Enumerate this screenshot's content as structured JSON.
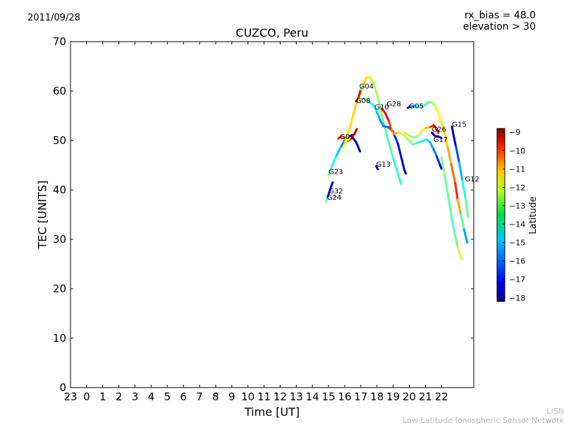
{
  "header": {
    "date": "2011/09/28",
    "rx_bias": "rx_bias = 48.0",
    "elevation": "elevation > 30"
  },
  "footer": {
    "org_code": "LISN",
    "org_name": "Low-Latitude Ionospheric Sensor Network"
  },
  "chart_data": {
    "type": "scatter",
    "title": "CUZCO, Peru",
    "xlabel": "Time [UT]",
    "ylabel": "TEC [UNITS]",
    "xlim": [
      -1,
      24
    ],
    "ylim": [
      0,
      70
    ],
    "x_ticks": [
      -1,
      0,
      1,
      2,
      3,
      4,
      5,
      6,
      7,
      8,
      9,
      10,
      11,
      12,
      13,
      14,
      15,
      16,
      17,
      18,
      19,
      20,
      21,
      22
    ],
    "x_tick_labels": [
      "23",
      "0",
      "1",
      "2",
      "3",
      "4",
      "5",
      "6",
      "7",
      "8",
      "9",
      "10",
      "11",
      "12",
      "13",
      "14",
      "15",
      "16",
      "17",
      "18",
      "19",
      "20",
      "21",
      "22"
    ],
    "y_ticks": [
      0,
      10,
      20,
      30,
      40,
      50,
      60,
      70
    ],
    "y_tick_labels": [
      "0",
      "10",
      "20",
      "30",
      "40",
      "50",
      "60",
      "70"
    ],
    "grid": false,
    "colorbar": {
      "label": "Latitude",
      "min": -18.2,
      "max": -8.8,
      "ticks": [
        -9,
        -10,
        -11,
        -12,
        -13,
        -14,
        -15,
        -16,
        -17,
        -18
      ],
      "tick_labels": [
        "−9",
        "−10",
        "−11",
        "−12",
        "−13",
        "−14",
        "−15",
        "−16",
        "−17",
        "−18"
      ],
      "colormap": "jet"
    },
    "series": [
      {
        "name": "G24",
        "label_at": [
          14.9,
          38.0
        ],
        "points": [
          [
            14.85,
            37.6,
            -13.4
          ],
          [
            14.9,
            38.3,
            -13.9
          ],
          [
            14.95,
            38.8,
            -14.4
          ]
        ]
      },
      {
        "name": "G32",
        "label_at": [
          15.0,
          39.3
        ],
        "points": [
          [
            14.95,
            38.6,
            -16.5
          ],
          [
            15.05,
            39.6,
            -17.0
          ],
          [
            15.15,
            40.6,
            -17.4
          ],
          [
            15.25,
            41.5,
            -17.7
          ]
        ]
      },
      {
        "name": "G23",
        "label_at": [
          15.0,
          43.2
        ],
        "points": [
          [
            15.0,
            43.0,
            -13.4
          ],
          [
            15.2,
            44.8,
            -14.2
          ],
          [
            15.5,
            47.0,
            -14.9
          ],
          [
            15.8,
            48.9,
            -15.5
          ],
          [
            16.1,
            50.6,
            -16.0
          ],
          [
            16.4,
            51.0,
            -16.8
          ],
          [
            16.7,
            49.7,
            -17.4
          ],
          [
            16.95,
            47.8,
            -17.9
          ]
        ]
      },
      {
        "name": "G07",
        "label_at": [
          15.7,
          50.3
        ],
        "points": [
          [
            15.6,
            50.4,
            -9.7
          ],
          [
            15.8,
            50.9,
            -10.3
          ],
          [
            16.0,
            50.4,
            -11.3
          ],
          [
            16.2,
            49.8,
            -11.6
          ],
          [
            16.4,
            50.3,
            -10.8
          ],
          [
            16.6,
            51.3,
            -9.6
          ],
          [
            16.75,
            52.3,
            -9.2
          ]
        ]
      },
      {
        "name": "G08",
        "label_at": [
          16.7,
          57.6
        ],
        "points": [
          [
            15.9,
            48.5,
            -12.5
          ],
          [
            16.2,
            51.0,
            -12.2
          ],
          [
            16.5,
            54.8,
            -12.0
          ],
          [
            16.8,
            58.4,
            -11.9
          ],
          [
            17.1,
            60.7,
            -12.0
          ],
          [
            17.35,
            62.8,
            -12.0
          ],
          [
            17.55,
            62.8,
            -12.3
          ],
          [
            17.8,
            61.7,
            -12.8
          ],
          [
            18.1,
            58.0,
            -13.4
          ],
          [
            18.5,
            52.4,
            -13.8
          ],
          [
            19.0,
            46.4,
            -14.1
          ],
          [
            19.5,
            41.2,
            -14.5
          ]
        ]
      },
      {
        "name": "G04",
        "label_at": [
          16.9,
          60.5
        ],
        "points": [
          [
            16.7,
            57.9,
            -9.2
          ],
          [
            16.85,
            58.6,
            -9.6
          ],
          [
            17.0,
            60.3,
            -10.2
          ],
          [
            17.1,
            60.7,
            -17.6
          ]
        ]
      },
      {
        "name": "G10",
        "label_at": [
          17.85,
          56.3
        ],
        "points": [
          [
            16.9,
            58.3,
            -13.3
          ],
          [
            17.2,
            58.5,
            -13.6
          ],
          [
            17.5,
            57.8,
            -14.0
          ],
          [
            17.8,
            57.1,
            -14.3
          ],
          [
            18.0,
            55.7,
            -15.2
          ],
          [
            18.2,
            54.1,
            -15.6
          ],
          [
            18.4,
            52.9,
            -15.8
          ],
          [
            18.7,
            52.7,
            -16.0
          ],
          [
            19.0,
            51.8,
            -16.5
          ],
          [
            19.3,
            49.3,
            -16.9
          ],
          [
            19.5,
            46.7,
            -17.3
          ],
          [
            19.7,
            44.0,
            -17.7
          ],
          [
            19.8,
            43.3,
            -17.9
          ]
        ]
      },
      {
        "name": "G28",
        "label_at": [
          18.6,
          56.9
        ],
        "points": [
          [
            18.3,
            56.4,
            -10.6
          ],
          [
            18.5,
            55.6,
            -9.4
          ],
          [
            18.75,
            53.8,
            -10.2
          ],
          [
            18.9,
            52.0,
            -10.9
          ],
          [
            19.1,
            51.3,
            -11.5
          ],
          [
            19.3,
            51.7,
            -11.7
          ],
          [
            19.6,
            51.2,
            -12.5
          ],
          [
            19.9,
            50.3,
            -13.0
          ],
          [
            20.2,
            49.2,
            -13.7
          ],
          [
            20.5,
            49.5,
            -14.1
          ],
          [
            20.8,
            49.9,
            -14.5
          ],
          [
            21.1,
            50.2,
            -14.6
          ],
          [
            21.3,
            49.6,
            -15.2
          ],
          [
            21.5,
            48.3,
            -15.6
          ],
          [
            21.7,
            46.8,
            -16.2
          ],
          [
            21.9,
            45.1,
            -17.0
          ],
          [
            22.0,
            44.3,
            -17.5
          ]
        ]
      },
      {
        "name": "G13",
        "label_at": [
          17.95,
          44.7
        ],
        "points": [
          [
            17.95,
            44.8,
            -17.4
          ],
          [
            18.05,
            44.2,
            -17.8
          ]
        ]
      },
      {
        "name": "G05",
        "label_at": [
          20.0,
          56.5
        ],
        "points": [
          [
            19.9,
            56.6,
            -17.4
          ],
          [
            20.1,
            56.9,
            -16.2
          ],
          [
            20.4,
            57.0,
            -15.0
          ],
          [
            20.7,
            56.8,
            -14.5
          ],
          [
            21.0,
            57.2,
            -14.2
          ],
          [
            21.2,
            57.8,
            -13.9
          ],
          [
            21.4,
            57.7,
            -13.4
          ],
          [
            21.6,
            57.0,
            -12.9
          ],
          [
            21.8,
            55.6,
            -12.4
          ],
          [
            22.0,
            53.7,
            -12.2
          ],
          [
            22.2,
            51.4,
            -12.0
          ],
          [
            22.4,
            48.4,
            -11.7
          ],
          [
            22.6,
            45.2,
            -11.3
          ],
          [
            22.85,
            41.4,
            -10.6
          ],
          [
            23.0,
            38.0,
            -10.0
          ],
          [
            23.2,
            35.0,
            -13.0
          ],
          [
            23.4,
            32.0,
            -14.5
          ],
          [
            23.6,
            29.3,
            -16.5
          ]
        ]
      },
      {
        "name": "G26",
        "label_at": [
          21.4,
          51.8
        ],
        "points": [
          [
            19.7,
            51.6,
            -12.5
          ],
          [
            20.0,
            51.0,
            -13.0
          ],
          [
            20.3,
            50.6,
            -13.5
          ],
          [
            20.6,
            51.0,
            -13.2
          ],
          [
            20.8,
            52.0,
            -12.6
          ],
          [
            21.0,
            52.5,
            -12.0
          ],
          [
            21.3,
            52.7,
            -11.5
          ],
          [
            21.5,
            53.1,
            -9.5
          ],
          [
            21.7,
            52.4,
            -9.8
          ],
          [
            21.8,
            51.6,
            -10.2
          ]
        ]
      },
      {
        "name": "G17",
        "label_at": [
          21.5,
          49.7
        ],
        "points": [
          [
            21.4,
            51.6,
            -17.8
          ],
          [
            21.6,
            50.9,
            -17.5
          ],
          [
            21.8,
            50.8,
            -17.2
          ],
          [
            22.0,
            50.5,
            -16.8
          ]
        ]
      },
      {
        "name": "G15",
        "label_at": [
          22.65,
          52.8
        ],
        "points": [
          [
            22.65,
            52.8,
            -17.8
          ],
          [
            22.75,
            51.0,
            -17.5
          ],
          [
            22.9,
            48.7,
            -16.8
          ],
          [
            23.1,
            45.5,
            -15.9
          ],
          [
            23.3,
            41.8,
            -14.8
          ],
          [
            23.5,
            38.0,
            -14.0
          ],
          [
            23.65,
            34.5,
            -13.6
          ]
        ]
      },
      {
        "name": "G12",
        "label_at": [
          23.45,
          41.7
        ],
        "points": [
          [
            22.0,
            46.5,
            -13.5
          ],
          [
            22.2,
            43.0,
            -13.6
          ],
          [
            22.4,
            39.0,
            -13.7
          ],
          [
            22.6,
            35.0,
            -13.9
          ],
          [
            22.8,
            31.5,
            -14.1
          ],
          [
            23.0,
            28.5,
            -13.2
          ],
          [
            23.25,
            26.0,
            -12.4
          ]
        ]
      }
    ]
  }
}
